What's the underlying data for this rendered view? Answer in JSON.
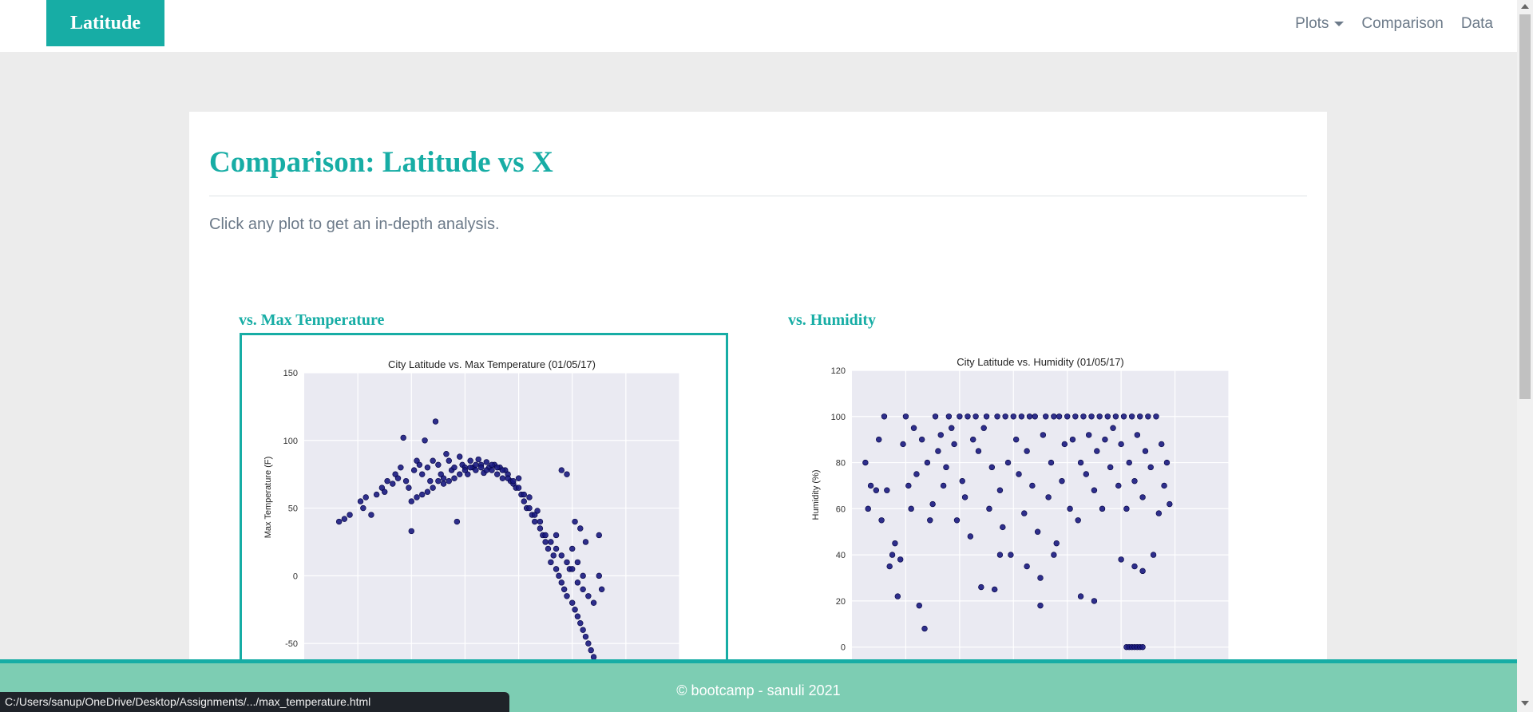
{
  "navbar": {
    "brand": "Latitude",
    "links": [
      {
        "label": "Plots",
        "dropdown": true
      },
      {
        "label": "Comparison"
      },
      {
        "label": "Data"
      }
    ]
  },
  "main": {
    "title": "Comparison: Latitude vs X",
    "lead": "Click any plot to get an in-depth analysis."
  },
  "plots": [
    {
      "heading": "vs. Max Temperature"
    },
    {
      "heading": "vs. Humidity"
    }
  ],
  "footer": {
    "text": "© bootcamp - sanuli 2021"
  },
  "status_bar": {
    "url": "C:/Users/sanup/OneDrive/Desktop/Assignments/.../max_temperature.html"
  },
  "colors": {
    "accent": "#17ada5",
    "footer": "#7dcdb3",
    "point": "#1a1a80",
    "plot_bg": "#eaeaf2"
  },
  "chart_data": [
    {
      "type": "scatter",
      "title": "City Latitude vs. Max Temperature (01/05/17)",
      "xlabel": "",
      "ylabel": "Max Temperature (F)",
      "ylim": [
        -80,
        150
      ],
      "xlim": [
        -60,
        80
      ],
      "yticks": [
        150,
        100,
        50,
        0,
        -50
      ],
      "grid": true,
      "points": [
        [
          -47,
          40
        ],
        [
          -45,
          42
        ],
        [
          -43,
          45
        ],
        [
          -39,
          55
        ],
        [
          -38,
          50
        ],
        [
          -37,
          58
        ],
        [
          -35,
          45
        ],
        [
          -33,
          60
        ],
        [
          -31,
          65
        ],
        [
          -30,
          62
        ],
        [
          -29,
          70
        ],
        [
          -27,
          68
        ],
        [
          -26,
          75
        ],
        [
          -25,
          72
        ],
        [
          -24,
          80
        ],
        [
          -23,
          102
        ],
        [
          -22,
          70
        ],
        [
          -21,
          65
        ],
        [
          -20,
          33
        ],
        [
          -19,
          78
        ],
        [
          -18,
          85
        ],
        [
          -17,
          82
        ],
        [
          -16,
          75
        ],
        [
          -15,
          100
        ],
        [
          -14,
          80
        ],
        [
          -13,
          70
        ],
        [
          -12,
          85
        ],
        [
          -11,
          114
        ],
        [
          -10,
          82
        ],
        [
          -9,
          75
        ],
        [
          -8,
          72
        ],
        [
          -7,
          90
        ],
        [
          -6,
          85
        ],
        [
          -5,
          78
        ],
        [
          -4,
          80
        ],
        [
          -3,
          40
        ],
        [
          -2,
          88
        ],
        [
          -1,
          82
        ],
        [
          0,
          80
        ],
        [
          1,
          75
        ],
        [
          2,
          85
        ],
        [
          3,
          80
        ],
        [
          4,
          78
        ],
        [
          5,
          86
        ],
        [
          6,
          82
        ],
        [
          7,
          76
        ],
        [
          8,
          84
        ],
        [
          9,
          80
        ],
        [
          10,
          78
        ],
        [
          11,
          82
        ],
        [
          12,
          75
        ],
        [
          13,
          80
        ],
        [
          14,
          72
        ],
        [
          15,
          78
        ],
        [
          16,
          75
        ],
        [
          17,
          70
        ],
        [
          18,
          68
        ],
        [
          19,
          65
        ],
        [
          20,
          72
        ],
        [
          21,
          60
        ],
        [
          22,
          55
        ],
        [
          23,
          50
        ],
        [
          24,
          58
        ],
        [
          25,
          45
        ],
        [
          26,
          40
        ],
        [
          27,
          48
        ],
        [
          28,
          35
        ],
        [
          29,
          30
        ],
        [
          30,
          25
        ],
        [
          31,
          20
        ],
        [
          32,
          10
        ],
        [
          33,
          15
        ],
        [
          34,
          5
        ],
        [
          35,
          0
        ],
        [
          36,
          -5
        ],
        [
          37,
          -10
        ],
        [
          38,
          -15
        ],
        [
          39,
          5
        ],
        [
          40,
          -20
        ],
        [
          41,
          -25
        ],
        [
          42,
          -30
        ],
        [
          43,
          -35
        ],
        [
          44,
          -40
        ],
        [
          45,
          -45
        ],
        [
          46,
          -50
        ],
        [
          47,
          -55
        ],
        [
          48,
          -60
        ],
        [
          36,
          78
        ],
        [
          38,
          75
        ],
        [
          34,
          30
        ],
        [
          40,
          20
        ],
        [
          42,
          10
        ],
        [
          44,
          0
        ],
        [
          30,
          30
        ],
        [
          28,
          40
        ],
        [
          26,
          45
        ],
        [
          24,
          50
        ],
        [
          22,
          60
        ],
        [
          20,
          65
        ],
        [
          18,
          70
        ],
        [
          16,
          72
        ],
        [
          14,
          78
        ],
        [
          12,
          80
        ],
        [
          10,
          82
        ],
        [
          8,
          78
        ],
        [
          6,
          80
        ],
        [
          4,
          82
        ],
        [
          2,
          80
        ],
        [
          0,
          78
        ],
        [
          -2,
          75
        ],
        [
          -4,
          72
        ],
        [
          -6,
          70
        ],
        [
          -8,
          68
        ],
        [
          -10,
          70
        ],
        [
          -12,
          65
        ],
        [
          -14,
          62
        ],
        [
          -16,
          60
        ],
        [
          -18,
          58
        ],
        [
          -20,
          55
        ],
        [
          32,
          25
        ],
        [
          34,
          20
        ],
        [
          36,
          15
        ],
        [
          38,
          10
        ],
        [
          40,
          5
        ],
        [
          42,
          -5
        ],
        [
          44,
          -10
        ],
        [
          46,
          -15
        ],
        [
          48,
          -20
        ],
        [
          50,
          30
        ],
        [
          50,
          0
        ],
        [
          51,
          -10
        ],
        [
          45,
          25
        ],
        [
          43,
          35
        ],
        [
          41,
          40
        ]
      ]
    },
    {
      "type": "scatter",
      "title": "City Latitude vs. Humidity (01/05/17)",
      "xlabel": "",
      "ylabel": "Humidity (%)",
      "ylim": [
        -15,
        120
      ],
      "xlim": [
        -60,
        80
      ],
      "yticks": [
        120,
        100,
        80,
        60,
        40,
        20,
        0
      ],
      "grid": true,
      "points": [
        [
          -55,
          80
        ],
        [
          -54,
          60
        ],
        [
          -53,
          70
        ],
        [
          -51,
          68
        ],
        [
          -50,
          90
        ],
        [
          -49,
          55
        ],
        [
          -48,
          100
        ],
        [
          -47,
          68
        ],
        [
          -46,
          35
        ],
        [
          -45,
          40
        ],
        [
          -44,
          45
        ],
        [
          -43,
          22
        ],
        [
          -42,
          38
        ],
        [
          -41,
          88
        ],
        [
          -40,
          100
        ],
        [
          -39,
          70
        ],
        [
          -38,
          60
        ],
        [
          -37,
          95
        ],
        [
          -36,
          75
        ],
        [
          -35,
          18
        ],
        [
          -34,
          90
        ],
        [
          -33,
          8
        ],
        [
          -32,
          80
        ],
        [
          -31,
          55
        ],
        [
          -30,
          62
        ],
        [
          -29,
          100
        ],
        [
          -28,
          85
        ],
        [
          -27,
          92
        ],
        [
          -26,
          70
        ],
        [
          -25,
          78
        ],
        [
          -24,
          100
        ],
        [
          -23,
          95
        ],
        [
          -22,
          88
        ],
        [
          -21,
          55
        ],
        [
          -20,
          100
        ],
        [
          -19,
          72
        ],
        [
          -18,
          65
        ],
        [
          -17,
          100
        ],
        [
          -16,
          48
        ],
        [
          -15,
          90
        ],
        [
          -14,
          100
        ],
        [
          -13,
          85
        ],
        [
          -12,
          26
        ],
        [
          -11,
          95
        ],
        [
          -10,
          100
        ],
        [
          -9,
          60
        ],
        [
          -8,
          78
        ],
        [
          -7,
          25
        ],
        [
          -6,
          100
        ],
        [
          -5,
          68
        ],
        [
          -4,
          52
        ],
        [
          -3,
          100
        ],
        [
          -2,
          80
        ],
        [
          -1,
          40
        ],
        [
          0,
          100
        ],
        [
          1,
          90
        ],
        [
          2,
          75
        ],
        [
          3,
          100
        ],
        [
          4,
          58
        ],
        [
          5,
          85
        ],
        [
          6,
          100
        ],
        [
          7,
          70
        ],
        [
          8,
          100
        ],
        [
          9,
          50
        ],
        [
          10,
          18
        ],
        [
          11,
          92
        ],
        [
          12,
          100
        ],
        [
          13,
          65
        ],
        [
          14,
          80
        ],
        [
          15,
          100
        ],
        [
          16,
          45
        ],
        [
          17,
          100
        ],
        [
          18,
          72
        ],
        [
          19,
          88
        ],
        [
          20,
          100
        ],
        [
          21,
          60
        ],
        [
          22,
          90
        ],
        [
          23,
          100
        ],
        [
          24,
          55
        ],
        [
          25,
          80
        ],
        [
          26,
          100
        ],
        [
          27,
          75
        ],
        [
          28,
          92
        ],
        [
          29,
          100
        ],
        [
          30,
          68
        ],
        [
          31,
          85
        ],
        [
          32,
          100
        ],
        [
          33,
          60
        ],
        [
          34,
          90
        ],
        [
          35,
          100
        ],
        [
          36,
          78
        ],
        [
          37,
          95
        ],
        [
          38,
          100
        ],
        [
          39,
          70
        ],
        [
          40,
          88
        ],
        [
          41,
          100
        ],
        [
          42,
          60
        ],
        [
          43,
          80
        ],
        [
          44,
          100
        ],
        [
          45,
          72
        ],
        [
          46,
          92
        ],
        [
          47,
          100
        ],
        [
          48,
          65
        ],
        [
          49,
          85
        ],
        [
          50,
          100
        ],
        [
          51,
          78
        ],
        [
          52,
          40
        ],
        [
          53,
          100
        ],
        [
          54,
          58
        ],
        [
          55,
          88
        ],
        [
          56,
          70
        ],
        [
          57,
          80
        ],
        [
          58,
          62
        ],
        [
          30,
          20
        ],
        [
          25,
          22
        ],
        [
          15,
          40
        ],
        [
          10,
          30
        ],
        [
          5,
          35
        ],
        [
          -5,
          40
        ],
        [
          40,
          38
        ],
        [
          45,
          35
        ],
        [
          48,
          33
        ],
        [
          42,
          0
        ],
        [
          43,
          0
        ],
        [
          44,
          0
        ],
        [
          45,
          0
        ],
        [
          46,
          0
        ],
        [
          47,
          0
        ],
        [
          48,
          0
        ]
      ]
    }
  ]
}
